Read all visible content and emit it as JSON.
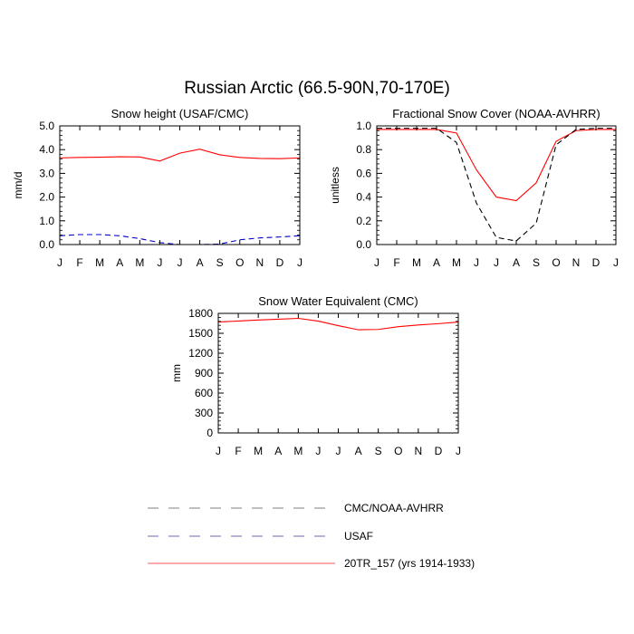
{
  "figure": {
    "title": "Russian Arctic (66.5-90N,70-170E)"
  },
  "chart_data": [
    {
      "type": "line",
      "title": "Snow height (USAF/CMC)",
      "xlabel": "",
      "ylabel": "mm/d",
      "categories": [
        "J",
        "F",
        "M",
        "A",
        "M",
        "J",
        "J",
        "A",
        "S",
        "O",
        "N",
        "D",
        "J"
      ],
      "ylim": [
        0,
        5
      ],
      "yticks": [
        "0.0",
        "1.0",
        "2.0",
        "3.0",
        "4.0",
        "5.0"
      ],
      "grid": false,
      "series": [
        {
          "name": "20TR_157 (yrs 1914-1933)",
          "color": "#ff0000",
          "dash": "solid",
          "values": [
            3.65,
            3.67,
            3.68,
            3.7,
            3.69,
            3.52,
            3.85,
            4.02,
            3.78,
            3.67,
            3.63,
            3.62,
            3.65
          ]
        },
        {
          "name": "USAF",
          "color": "#0000cc",
          "dash": "dashed",
          "values": [
            0.37,
            0.42,
            0.42,
            0.37,
            0.25,
            0.08,
            0.0,
            0.0,
            0.02,
            0.2,
            0.28,
            0.32,
            0.37
          ]
        },
        {
          "name": "CMC/NOAA-AVHRR",
          "color": "#000000",
          "dash": "dashed",
          "values": [
            0.0,
            0.0,
            0.0,
            0.0,
            0.0,
            0.0,
            0.0,
            0.0,
            0.0,
            0.0,
            0.0,
            0.0,
            0.0
          ]
        }
      ]
    },
    {
      "type": "line",
      "title": "Fractional Snow Cover (NOAA-AVHRR)",
      "xlabel": "",
      "ylabel": "unitless",
      "categories": [
        "J",
        "F",
        "M",
        "A",
        "M",
        "J",
        "J",
        "A",
        "S",
        "O",
        "N",
        "D",
        "J"
      ],
      "ylim": [
        0,
        1
      ],
      "yticks": [
        "0.0",
        "0.2",
        "0.4",
        "0.6",
        "0.8",
        "1.0"
      ],
      "grid": false,
      "series": [
        {
          "name": "20TR_157 (yrs 1914-1933)",
          "color": "#ff0000",
          "dash": "solid",
          "values": [
            0.97,
            0.97,
            0.97,
            0.97,
            0.94,
            0.63,
            0.4,
            0.37,
            0.52,
            0.87,
            0.96,
            0.97,
            0.97
          ]
        },
        {
          "name": "CMC/NOAA-AVHRR",
          "color": "#000000",
          "dash": "dashed",
          "values": [
            0.98,
            0.98,
            0.98,
            0.98,
            0.86,
            0.35,
            0.06,
            0.03,
            0.18,
            0.84,
            0.97,
            0.98,
            0.98
          ]
        }
      ]
    },
    {
      "type": "line",
      "title": "Snow Water Equivalent (CMC)",
      "xlabel": "",
      "ylabel": "mm",
      "categories": [
        "J",
        "F",
        "M",
        "A",
        "M",
        "J",
        "J",
        "A",
        "S",
        "O",
        "N",
        "D",
        "J"
      ],
      "ylim": [
        0,
        1800
      ],
      "yticks": [
        "0",
        "300",
        "600",
        "900",
        "1200",
        "1500",
        "1800"
      ],
      "grid": false,
      "series": [
        {
          "name": "20TR_157 (yrs 1914-1933)",
          "color": "#ff0000",
          "dash": "solid",
          "values": [
            1670,
            1685,
            1700,
            1712,
            1725,
            1683,
            1615,
            1553,
            1558,
            1600,
            1625,
            1645,
            1670
          ]
        },
        {
          "name": "CMC/NOAA-AVHRR",
          "color": "#000000",
          "dash": "dashed",
          "values": [
            0,
            0,
            0,
            0,
            0,
            0,
            0,
            0,
            0,
            0,
            0,
            0,
            0
          ]
        }
      ]
    }
  ],
  "legend": {
    "position": "bottom-center",
    "items": [
      {
        "label": "CMC/NOAA-AVHRR",
        "color": "#808080",
        "dash": "dashed"
      },
      {
        "label": "USAF",
        "color": "#6a6aa8",
        "dash": "dashed"
      },
      {
        "label": "20TR_157 (yrs 1914-1933)",
        "color": "#ff5555",
        "dash": "solid"
      }
    ]
  }
}
